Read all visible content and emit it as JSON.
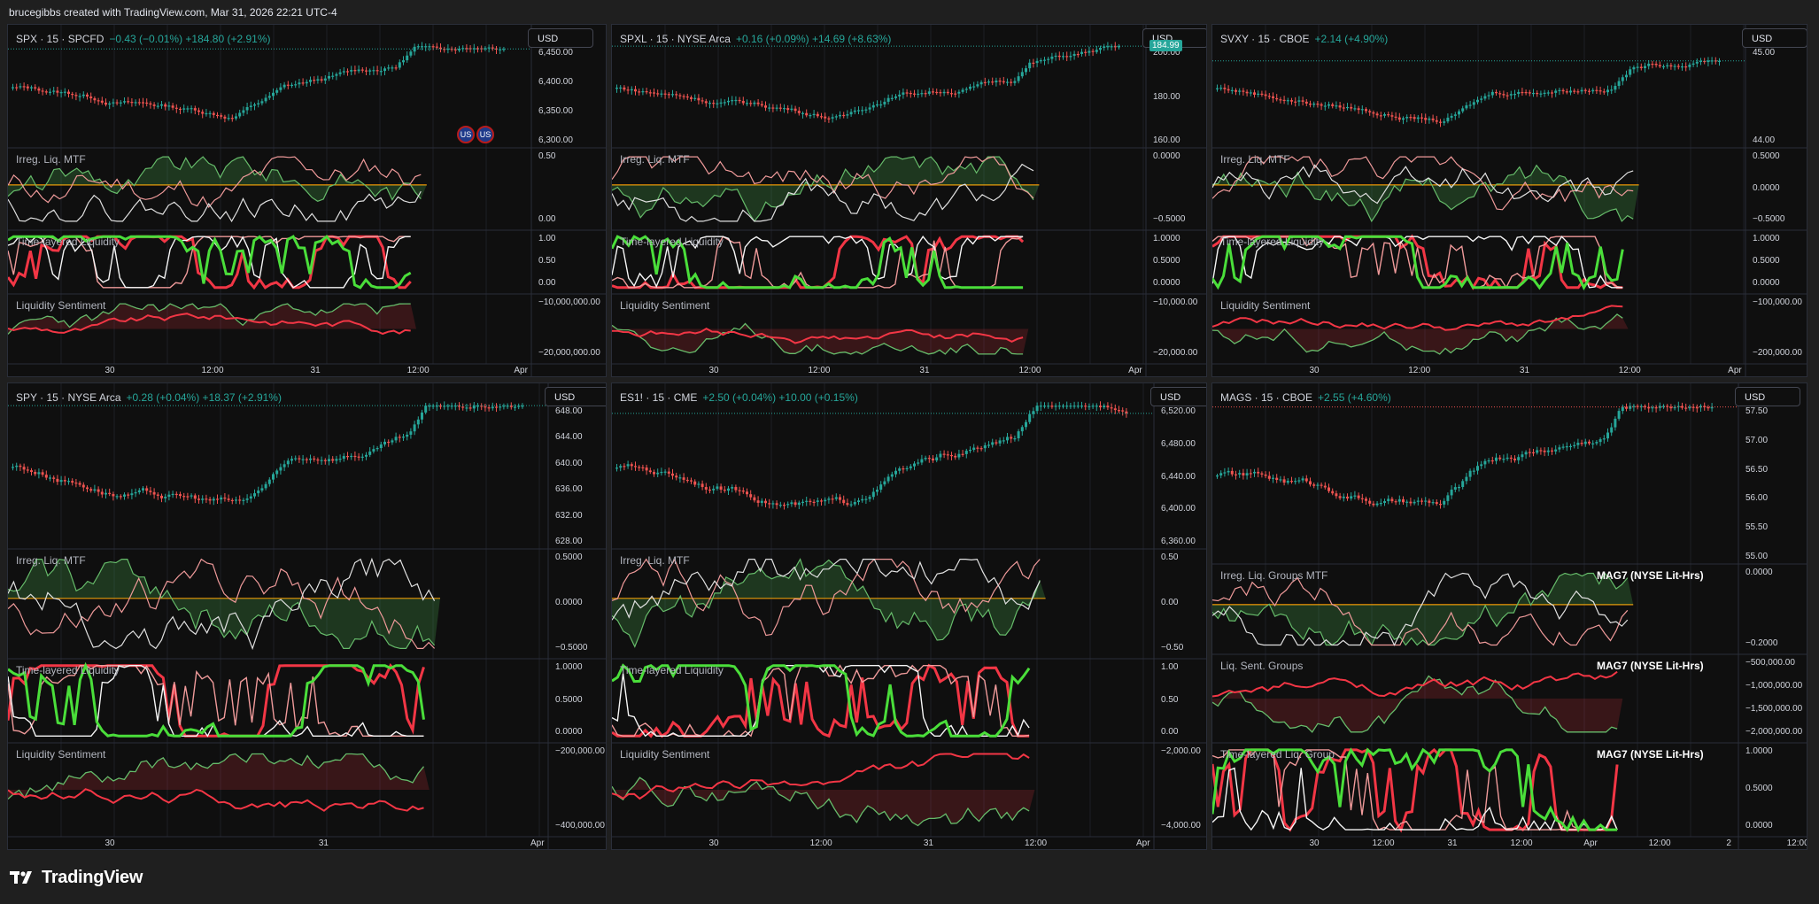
{
  "header": {
    "attribution": "brucegibbs created with TradingView.com, Mar 31, 2026 22:21 UTC-4"
  },
  "footer": {
    "logo_text": "TradingView"
  },
  "colors": {
    "bull": "#26a69a",
    "bear": "#ef5350",
    "liq_green": "#4caf50",
    "liq_red": "#f23645",
    "zero_line": "#ff9800"
  },
  "panels": [
    {
      "symbol": "SPX · 15 · SPCFD",
      "change": "−0.43 (−0.01%)  +184.80 (+2.91%)",
      "currency": "USD",
      "main_axis": [
        "6,450.00",
        "6,400.00",
        "6,350.00",
        "6,300.00"
      ],
      "sub_labels": [
        "Irreg. Liq. MTF",
        "Time-layered Liquidity",
        "Liquidity Sentiment"
      ],
      "sub_axes": [
        [
          "0.50",
          "0.00"
        ],
        [
          "1.00",
          "0.50",
          "0.00"
        ],
        [
          "−10,000,000.00",
          "−20,000,000.00"
        ]
      ],
      "x_axis": [
        "30",
        "12:00",
        "31",
        "12:00",
        "Apr"
      ],
      "flags": [
        "US",
        "US"
      ]
    },
    {
      "symbol": "SPXL · 15 · NYSE Arca",
      "change": "+0.16 (+0.09%)  +14.69 (+8.63%)",
      "currency": "USD",
      "price_tag": "184.99",
      "main_axis": [
        "200.00",
        "180.00",
        "160.00"
      ],
      "sub_labels": [
        "Irreg. Liq. MTF",
        "Time-layered Liquidity",
        "Liquidity Sentiment"
      ],
      "sub_axes": [
        [
          "0.0000",
          "−0.5000"
        ],
        [
          "1.0000",
          "0.5000",
          "0.0000"
        ],
        [
          "−10,000.00",
          "−20,000.00"
        ]
      ],
      "x_axis": [
        "30",
        "12:00",
        "31",
        "12:00",
        "Apr"
      ]
    },
    {
      "symbol": "SVXY · 15 · CBOE",
      "change": "+2.14 (+4.90%)",
      "currency": "USD",
      "main_axis": [
        "45.00",
        "44.00"
      ],
      "sub_labels": [
        "Irreg. Liq. MTF",
        "Time-layered Liquidity",
        "Liquidity Sentiment"
      ],
      "sub_axes": [
        [
          "0.5000",
          "0.0000",
          "−0.5000"
        ],
        [
          "1.0000",
          "0.5000",
          "0.0000"
        ],
        [
          "−100,000.00",
          "−200,000.00"
        ]
      ],
      "x_axis": [
        "30",
        "12:00",
        "31",
        "12:00",
        "Apr"
      ]
    },
    {
      "symbol": "SPY · 15 · NYSE Arca",
      "change": "+0.28 (+0.04%)  +18.37 (+2.91%)",
      "currency": "USD",
      "main_axis": [
        "648.00",
        "644.00",
        "640.00",
        "636.00",
        "632.00",
        "628.00"
      ],
      "sub_labels": [
        "Irreg. Liq. MTF",
        "Time-layered Liquidity",
        "Liquidity Sentiment"
      ],
      "sub_axes": [
        [
          "0.5000",
          "0.0000",
          "−0.5000"
        ],
        [
          "1.0000",
          "0.5000",
          "0.0000"
        ],
        [
          "−200,000.00",
          "−400,000.00"
        ]
      ],
      "x_axis": [
        "30",
        "31",
        "Apr"
      ]
    },
    {
      "symbol": "ES1! · 15 · CME",
      "change": "+2.50 (+0.04%)  +10.00 (+0.15%)",
      "currency": "USD",
      "main_axis": [
        "6,520.00",
        "6,480.00",
        "6,440.00",
        "6,400.00",
        "6,360.00"
      ],
      "sub_labels": [
        "Irreg. Liq. MTF",
        "Time-layered Liquidity",
        "Liquidity Sentiment"
      ],
      "sub_axes": [
        [
          "0.50",
          "0.00",
          "−0.50"
        ],
        [
          "1.00",
          "0.50",
          "0.00"
        ],
        [
          "−2,000.00",
          "−4,000.00"
        ]
      ],
      "x_axis": [
        "30",
        "12:00",
        "31",
        "12:00",
        "Apr"
      ]
    },
    {
      "symbol": "MAGS · 15 · CBOE",
      "change": "+2.55 (+4.60%)",
      "currency": "USD",
      "main_axis": [
        "57.50",
        "57.00",
        "56.50",
        "56.00",
        "55.50",
        "55.00"
      ],
      "sub_labels": [
        "Irreg. Liq. Groups MTF",
        "Liq. Sent. Groups",
        "Time-layered Liq. Group"
      ],
      "watermarks": [
        "MAG7 (NYSE Lit-Hrs)",
        "MAG7 (NYSE Lit-Hrs)",
        "MAG7 (NYSE Lit-Hrs)"
      ],
      "sub_axes": [
        [
          "0.0000",
          "−0.2000"
        ],
        [
          "−500,000.00",
          "−1,000,000.00",
          "−1,500,000.00",
          "−2,000,000.00"
        ],
        [
          "1.0000",
          "0.5000",
          "0.0000"
        ]
      ],
      "x_axis": [
        "30",
        "12:00",
        "31",
        "12:00",
        "Apr",
        "12:00",
        "2",
        "12:00"
      ]
    }
  ]
}
